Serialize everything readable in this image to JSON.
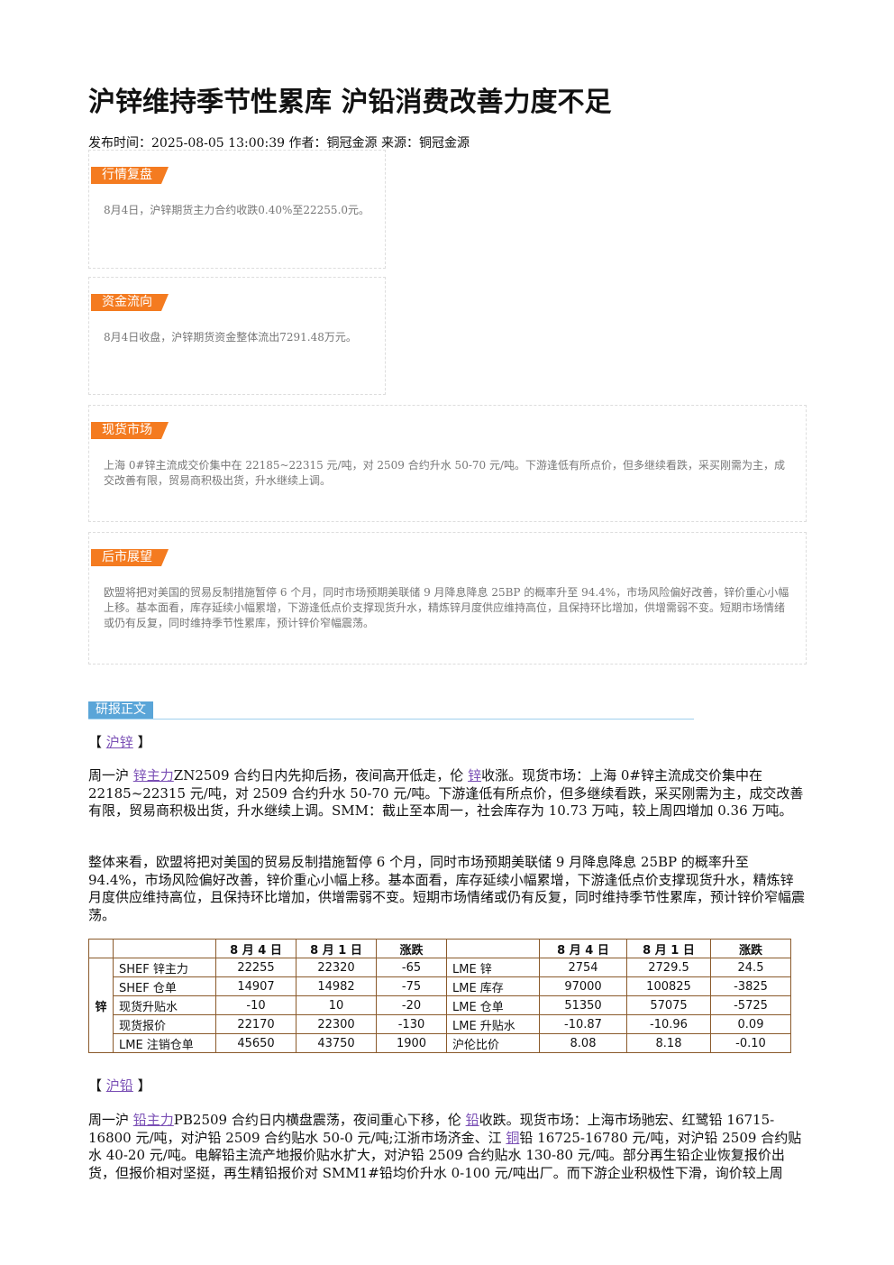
{
  "title": "沪锌维持季节性累库 沪铅消费改善力度不足",
  "meta": "发布时间：2025-08-05 13:00:39 作者：铜冠金源 来源：铜冠金源",
  "boxes": [
    {
      "label": "行情复盘",
      "text": "8月4日，沪锌期货主力合约收跌0.40%至22255.0元。"
    },
    {
      "label": "资金流向",
      "text": "8月4日收盘，沪锌期货资金整体流出7291.48万元。"
    },
    {
      "label": "现货市场",
      "text": "上海 0#锌主流成交价集中在 22185~22315 元/吨，对 2509 合约升水 50-70 元/吨。下游逢低有所点价，但多继续看跌，采买刚需为主，成交改善有限，贸易商积极出货，升水继续上调。"
    },
    {
      "label": "后市展望",
      "text": "欧盟将把对美国的贸易反制措施暂停 6 个月，同时市场预期美联储 9 月降息降息 25BP 的概率升至 94.4%，市场风险偏好改善，锌价重心小幅上移。基本面看，库存延续小幅累增，下游逢低点价支撑现货升水，精炼锌月度供应维持高位，且保持环比增加，供增需弱不变。短期市场情绪或仍有反复，同时维持季节性累库，预计锌价窄幅震荡。"
    }
  ],
  "section_label": "研报正文",
  "zinc": {
    "heading": [
      {
        "t": "【 "
      },
      {
        "link": "沪锌"
      },
      {
        "t": " 】"
      }
    ],
    "paragraphs": [
      [
        {
          "t": "周一沪 "
        },
        {
          "link": "锌主力"
        },
        {
          "t": "ZN2509 合约日内先抑后扬，夜间高开低走，伦 "
        },
        {
          "link": "锌"
        },
        {
          "t": "收涨。现货市场：上海 0#锌主流成交价集中在 22185~22315 元/吨，对 2509 合约升水 50-70 元/吨。下游逢低有所点价，但多继续看跌，采买刚需为主，成交改善有限，贸易商积极出货，升水继续上调。SMM：截止至本周一，社会库存为 10.73 万吨，较上周四增加 0.36 万吨。"
        }
      ],
      [
        {
          "t": "整体来看，欧盟将把对美国的贸易反制措施暂停 6 个月，同时市场预期美联储 9 月降息降息 25BP 的概率升至 94.4%，市场风险偏好改善，锌价重心小幅上移。基本面看，库存延续小幅累增，下游逢低点价支撑现货升水，精炼锌月度供应维持高位，且保持环比增加，供增需弱不变。短期市场情绪或仍有反复，同时维持季节性累库，预计锌价窄幅震荡。"
        }
      ]
    ],
    "table": {
      "row_label": "锌",
      "headers": [
        "8 月 4 日",
        "8 月 1 日",
        "涨跌",
        "8 月 4 日",
        "8 月 1 日",
        "涨跌"
      ],
      "rows": [
        [
          "SHEF 锌主力",
          "22255",
          "22320",
          "-65",
          "LME 锌",
          "2754",
          "2729.5",
          "24.5"
        ],
        [
          "SHEF 仓单",
          "14907",
          "14982",
          "-75",
          "LME 库存",
          "97000",
          "100825",
          "-3825"
        ],
        [
          "现货升贴水",
          "-10",
          "10",
          "-20",
          "LME 仓单",
          "51350",
          "57075",
          "-5725"
        ],
        [
          "现货报价",
          "22170",
          "22300",
          "-130",
          "LME 升贴水",
          "-10.87",
          "-10.96",
          "0.09"
        ],
        [
          "LME 注销仓单",
          "45650",
          "43750",
          "1900",
          "沪伦比价",
          "8.08",
          "8.18",
          "-0.10"
        ]
      ]
    }
  },
  "lead": {
    "heading": [
      {
        "t": "【 "
      },
      {
        "link": "沪铅"
      },
      {
        "t": " 】"
      }
    ],
    "paragraphs": [
      [
        {
          "t": "周一沪 "
        },
        {
          "link": "铅主力"
        },
        {
          "t": "PB2509 合约日内横盘震荡，夜间重心下移，伦 "
        },
        {
          "link": "铅"
        },
        {
          "t": "收跌。现货市场：上海市场驰宏、红鹭铅 16715-16800 元/吨，对沪铅 2509 合约贴水 50-0 元/吨;江浙市场济金、江 "
        },
        {
          "link": "铜"
        },
        {
          "t": "铅 16725-16780 元/吨，对沪铅 2509 合约贴水 40-20 元/吨。电解铅主流产地报价贴水扩大，对沪铅 2509 合约贴水 130-80 元/吨。部分再生铅企业恢复报价出货，但报价相对坚挺，再生精铅报价对 SMM1#铅均价升水 0-100 元/吨出厂。而下游企业积极性下滑，询价较上周"
        }
      ]
    ]
  }
}
